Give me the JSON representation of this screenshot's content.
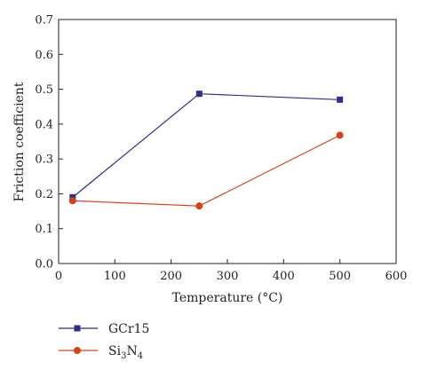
{
  "chart_data": {
    "type": "line",
    "xlabel": "Temperature (°C)",
    "ylabel": "Friction coefficient",
    "xlim": [
      0,
      600
    ],
    "ylim": [
      0.0,
      0.7
    ],
    "x_ticks": [
      "0",
      "100",
      "200",
      "300",
      "400",
      "500",
      "600"
    ],
    "y_ticks": [
      "0.0",
      "0.1",
      "0.2",
      "0.3",
      "0.4",
      "0.5",
      "0.6",
      "0.7"
    ],
    "grid": false,
    "legend_position": "bottom-left",
    "series": [
      {
        "name": "GCr15",
        "marker": "square",
        "color": "#2e2e8f",
        "x": [
          25,
          250,
          500
        ],
        "y": [
          0.19,
          0.487,
          0.47
        ]
      },
      {
        "name": "Si3N4",
        "name_parts": {
          "base1": "Si",
          "sub1": "3",
          "base2": "N",
          "sub2": "4"
        },
        "marker": "circle",
        "color": "#d4431a",
        "x": [
          25,
          250,
          500
        ],
        "y": [
          0.18,
          0.165,
          0.368
        ]
      }
    ]
  }
}
